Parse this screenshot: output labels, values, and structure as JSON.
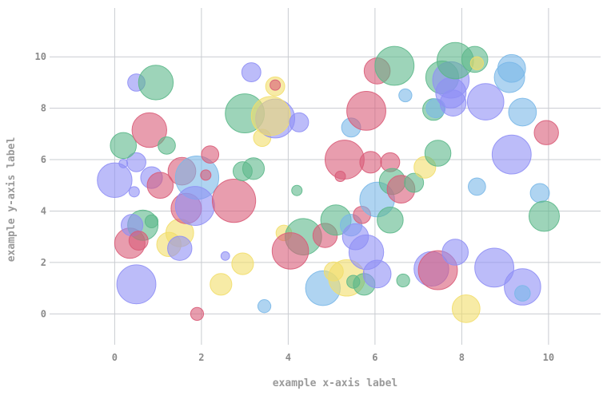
{
  "chart_data": {
    "type": "scatter",
    "title": "",
    "xlabel": "example x-axis label",
    "ylabel": "example y-axis label",
    "xlim": [
      -1.5,
      11.2
    ],
    "ylim": [
      -1.2,
      11.9
    ],
    "x_ticks": [
      0,
      2,
      4,
      6,
      8,
      10
    ],
    "y_ticks": [
      0,
      2,
      4,
      6,
      8,
      10
    ],
    "grid": true,
    "legend": "none",
    "colors": {
      "blue": "#7ab8e8",
      "green": "#5cb88a",
      "purple": "#8f8ff5",
      "red": "#d95c78",
      "yellow": "#f2de6b"
    },
    "points": [
      {
        "x": 0.5,
        "y": 1.15,
        "size": 0.45,
        "color": "purple"
      },
      {
        "x": 0.35,
        "y": 2.75,
        "size": 0.35,
        "color": "red"
      },
      {
        "x": 0.65,
        "y": 3.45,
        "size": 0.35,
        "color": "green"
      },
      {
        "x": 0.4,
        "y": 3.45,
        "size": 0.25,
        "color": "purple"
      },
      {
        "x": 0.55,
        "y": 2.85,
        "size": 0.22,
        "color": "red"
      },
      {
        "x": 0.85,
        "y": 3.6,
        "size": 0.15,
        "color": "green"
      },
      {
        "x": 0.45,
        "y": 4.75,
        "size": 0.12,
        "color": "purple"
      },
      {
        "x": 0.2,
        "y": 5.85,
        "size": 0.1,
        "color": "purple"
      },
      {
        "x": 0.5,
        "y": 5.9,
        "size": 0.22,
        "color": "purple"
      },
      {
        "x": 0.0,
        "y": 5.2,
        "size": 0.4,
        "color": "purple"
      },
      {
        "x": 0.2,
        "y": 6.55,
        "size": 0.3,
        "color": "green"
      },
      {
        "x": 0.85,
        "y": 5.3,
        "size": 0.25,
        "color": "purple"
      },
      {
        "x": 1.05,
        "y": 5.0,
        "size": 0.3,
        "color": "red"
      },
      {
        "x": 0.8,
        "y": 7.15,
        "size": 0.4,
        "color": "red"
      },
      {
        "x": 1.2,
        "y": 6.55,
        "size": 0.2,
        "color": "green"
      },
      {
        "x": 0.5,
        "y": 9.0,
        "size": 0.2,
        "color": "purple"
      },
      {
        "x": 0.95,
        "y": 9.0,
        "size": 0.4,
        "color": "green"
      },
      {
        "x": 1.25,
        "y": 2.7,
        "size": 0.28,
        "color": "yellow"
      },
      {
        "x": 1.5,
        "y": 3.15,
        "size": 0.32,
        "color": "yellow"
      },
      {
        "x": 1.5,
        "y": 2.55,
        "size": 0.28,
        "color": "purple"
      },
      {
        "x": 1.65,
        "y": 4.1,
        "size": 0.35,
        "color": "red"
      },
      {
        "x": 1.55,
        "y": 5.55,
        "size": 0.32,
        "color": "red"
      },
      {
        "x": 1.9,
        "y": 5.3,
        "size": 0.5,
        "color": "blue"
      },
      {
        "x": 1.85,
        "y": 4.2,
        "size": 0.45,
        "color": "purple"
      },
      {
        "x": 2.1,
        "y": 5.4,
        "size": 0.12,
        "color": "red"
      },
      {
        "x": 2.2,
        "y": 6.2,
        "size": 0.2,
        "color": "red"
      },
      {
        "x": 1.9,
        "y": 0.0,
        "size": 0.15,
        "color": "red"
      },
      {
        "x": 2.45,
        "y": 1.15,
        "size": 0.25,
        "color": "yellow"
      },
      {
        "x": 2.55,
        "y": 2.25,
        "size": 0.1,
        "color": "purple"
      },
      {
        "x": 2.75,
        "y": 4.4,
        "size": 0.5,
        "color": "red"
      },
      {
        "x": 2.95,
        "y": 1.95,
        "size": 0.25,
        "color": "yellow"
      },
      {
        "x": 2.95,
        "y": 5.55,
        "size": 0.22,
        "color": "green"
      },
      {
        "x": 3.2,
        "y": 5.65,
        "size": 0.25,
        "color": "green"
      },
      {
        "x": 3.0,
        "y": 7.8,
        "size": 0.45,
        "color": "green"
      },
      {
        "x": 3.15,
        "y": 9.4,
        "size": 0.22,
        "color": "purple"
      },
      {
        "x": 3.45,
        "y": 0.3,
        "size": 0.15,
        "color": "blue"
      },
      {
        "x": 3.4,
        "y": 6.85,
        "size": 0.2,
        "color": "yellow"
      },
      {
        "x": 3.7,
        "y": 7.6,
        "size": 0.45,
        "color": "purple"
      },
      {
        "x": 3.6,
        "y": 7.7,
        "size": 0.45,
        "color": "yellow"
      },
      {
        "x": 3.7,
        "y": 8.85,
        "size": 0.22,
        "color": "yellow"
      },
      {
        "x": 3.7,
        "y": 8.9,
        "size": 0.12,
        "color": "red"
      },
      {
        "x": 3.9,
        "y": 3.15,
        "size": 0.18,
        "color": "yellow"
      },
      {
        "x": 4.2,
        "y": 4.8,
        "size": 0.12,
        "color": "green"
      },
      {
        "x": 4.25,
        "y": 7.45,
        "size": 0.22,
        "color": "purple"
      },
      {
        "x": 4.35,
        "y": 3.0,
        "size": 0.42,
        "color": "green"
      },
      {
        "x": 4.05,
        "y": 2.45,
        "size": 0.42,
        "color": "red"
      },
      {
        "x": 4.85,
        "y": 3.05,
        "size": 0.28,
        "color": "red"
      },
      {
        "x": 4.8,
        "y": 1.0,
        "size": 0.4,
        "color": "blue"
      },
      {
        "x": 5.05,
        "y": 1.65,
        "size": 0.22,
        "color": "yellow"
      },
      {
        "x": 5.1,
        "y": 3.65,
        "size": 0.35,
        "color": "green"
      },
      {
        "x": 5.2,
        "y": 5.35,
        "size": 0.12,
        "color": "red"
      },
      {
        "x": 5.3,
        "y": 6.0,
        "size": 0.45,
        "color": "red"
      },
      {
        "x": 5.35,
        "y": 1.4,
        "size": 0.42,
        "color": "yellow"
      },
      {
        "x": 5.5,
        "y": 1.25,
        "size": 0.15,
        "color": "green"
      },
      {
        "x": 5.45,
        "y": 3.45,
        "size": 0.25,
        "color": "blue"
      },
      {
        "x": 5.55,
        "y": 3.0,
        "size": 0.3,
        "color": "purple"
      },
      {
        "x": 5.45,
        "y": 7.25,
        "size": 0.22,
        "color": "blue"
      },
      {
        "x": 5.7,
        "y": 3.85,
        "size": 0.2,
        "color": "red"
      },
      {
        "x": 5.75,
        "y": 1.15,
        "size": 0.25,
        "color": "green"
      },
      {
        "x": 5.8,
        "y": 2.4,
        "size": 0.4,
        "color": "purple"
      },
      {
        "x": 5.8,
        "y": 7.9,
        "size": 0.45,
        "color": "red"
      },
      {
        "x": 5.9,
        "y": 5.9,
        "size": 0.25,
        "color": "red"
      },
      {
        "x": 6.05,
        "y": 1.55,
        "size": 0.32,
        "color": "purple"
      },
      {
        "x": 6.05,
        "y": 4.45,
        "size": 0.4,
        "color": "blue"
      },
      {
        "x": 6.05,
        "y": 9.45,
        "size": 0.3,
        "color": "red"
      },
      {
        "x": 6.35,
        "y": 3.65,
        "size": 0.3,
        "color": "green"
      },
      {
        "x": 6.35,
        "y": 5.9,
        "size": 0.22,
        "color": "red"
      },
      {
        "x": 6.4,
        "y": 5.15,
        "size": 0.3,
        "color": "green"
      },
      {
        "x": 6.45,
        "y": 9.65,
        "size": 0.45,
        "color": "green"
      },
      {
        "x": 6.6,
        "y": 4.85,
        "size": 0.32,
        "color": "red"
      },
      {
        "x": 6.65,
        "y": 1.3,
        "size": 0.15,
        "color": "green"
      },
      {
        "x": 6.7,
        "y": 8.5,
        "size": 0.15,
        "color": "blue"
      },
      {
        "x": 6.9,
        "y": 5.1,
        "size": 0.22,
        "color": "green"
      },
      {
        "x": 7.15,
        "y": 5.7,
        "size": 0.25,
        "color": "yellow"
      },
      {
        "x": 7.3,
        "y": 1.75,
        "size": 0.4,
        "color": "purple"
      },
      {
        "x": 7.45,
        "y": 1.7,
        "size": 0.45,
        "color": "red"
      },
      {
        "x": 7.35,
        "y": 7.95,
        "size": 0.25,
        "color": "green"
      },
      {
        "x": 7.45,
        "y": 6.25,
        "size": 0.3,
        "color": "green"
      },
      {
        "x": 7.4,
        "y": 8.0,
        "size": 0.22,
        "color": "blue"
      },
      {
        "x": 7.55,
        "y": 9.2,
        "size": 0.38,
        "color": "green"
      },
      {
        "x": 7.75,
        "y": 9.1,
        "size": 0.42,
        "color": "purple"
      },
      {
        "x": 7.75,
        "y": 8.6,
        "size": 0.35,
        "color": "purple"
      },
      {
        "x": 7.8,
        "y": 8.2,
        "size": 0.3,
        "color": "purple"
      },
      {
        "x": 7.85,
        "y": 9.85,
        "size": 0.42,
        "color": "green"
      },
      {
        "x": 7.85,
        "y": 2.4,
        "size": 0.3,
        "color": "purple"
      },
      {
        "x": 8.1,
        "y": 0.2,
        "size": 0.32,
        "color": "yellow"
      },
      {
        "x": 8.3,
        "y": 9.9,
        "size": 0.3,
        "color": "green"
      },
      {
        "x": 8.35,
        "y": 9.75,
        "size": 0.15,
        "color": "yellow"
      },
      {
        "x": 8.35,
        "y": 4.95,
        "size": 0.2,
        "color": "blue"
      },
      {
        "x": 8.55,
        "y": 8.25,
        "size": 0.42,
        "color": "purple"
      },
      {
        "x": 8.75,
        "y": 1.8,
        "size": 0.45,
        "color": "purple"
      },
      {
        "x": 9.1,
        "y": 9.2,
        "size": 0.35,
        "color": "blue"
      },
      {
        "x": 9.15,
        "y": 9.55,
        "size": 0.32,
        "color": "blue"
      },
      {
        "x": 9.15,
        "y": 6.2,
        "size": 0.45,
        "color": "purple"
      },
      {
        "x": 9.4,
        "y": 1.05,
        "size": 0.42,
        "color": "purple"
      },
      {
        "x": 9.4,
        "y": 0.8,
        "size": 0.18,
        "color": "blue"
      },
      {
        "x": 9.4,
        "y": 7.85,
        "size": 0.32,
        "color": "blue"
      },
      {
        "x": 9.8,
        "y": 4.7,
        "size": 0.22,
        "color": "blue"
      },
      {
        "x": 9.9,
        "y": 3.8,
        "size": 0.35,
        "color": "green"
      },
      {
        "x": 9.95,
        "y": 7.05,
        "size": 0.28,
        "color": "red"
      }
    ]
  }
}
